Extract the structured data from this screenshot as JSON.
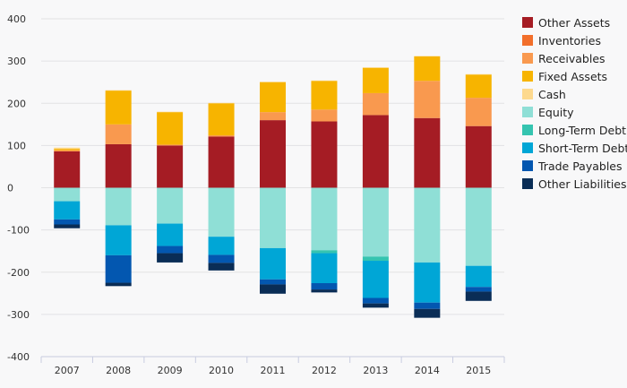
{
  "chart_data": {
    "type": "bar",
    "stacked": true,
    "categories": [
      "2007",
      "2008",
      "2009",
      "2010",
      "2011",
      "2012",
      "2013",
      "2014",
      "2015"
    ],
    "ylim": [
      -400,
      400
    ],
    "yticks": [
      400,
      300,
      200,
      100,
      0,
      -100,
      -200,
      -300,
      -400
    ],
    "grid": true,
    "legend_position": "right",
    "series": [
      {
        "name": "Other Assets",
        "color": "#a51c24",
        "values": [
          86,
          103,
          100,
          121,
          160,
          157,
          172,
          165,
          146
        ]
      },
      {
        "name": "Inventories",
        "color": "#f26f2b",
        "values": [
          0,
          0,
          0,
          0,
          0,
          0,
          0,
          0,
          0
        ]
      },
      {
        "name": "Receivables",
        "color": "#f9994f",
        "values": [
          3,
          47,
          2,
          3,
          19,
          28,
          52,
          88,
          67
        ]
      },
      {
        "name": "Fixed Assets",
        "color": "#f7b400",
        "values": [
          3,
          80,
          77,
          76,
          71,
          68,
          60,
          58,
          55
        ]
      },
      {
        "name": "Cash",
        "color": "#fdd98e",
        "values": [
          3,
          1,
          1,
          1,
          1,
          1,
          1,
          1,
          1
        ]
      },
      {
        "name": "Equity",
        "color": "#8fdfd6",
        "values": [
          -32,
          -89,
          -85,
          -116,
          -143,
          -148,
          -163,
          -177,
          -185
        ]
      },
      {
        "name": "Long-Term Debt",
        "color": "#35c4b0",
        "values": [
          0,
          0,
          0,
          0,
          0,
          -7,
          -10,
          0,
          0
        ]
      },
      {
        "name": "Short-Term Debt",
        "color": "#00a6d6",
        "values": [
          -43,
          -71,
          -53,
          -43,
          -74,
          -71,
          -88,
          -95,
          -50
        ]
      },
      {
        "name": "Trade Payables",
        "color": "#0357b0",
        "values": [
          -12,
          -65,
          -17,
          -19,
          -12,
          -15,
          -13,
          -15,
          -11
        ]
      },
      {
        "name": "Other Liabilities",
        "color": "#0a2d56",
        "values": [
          -9,
          -8,
          -22,
          -18,
          -22,
          -7,
          -10,
          -21,
          -22
        ]
      }
    ]
  }
}
